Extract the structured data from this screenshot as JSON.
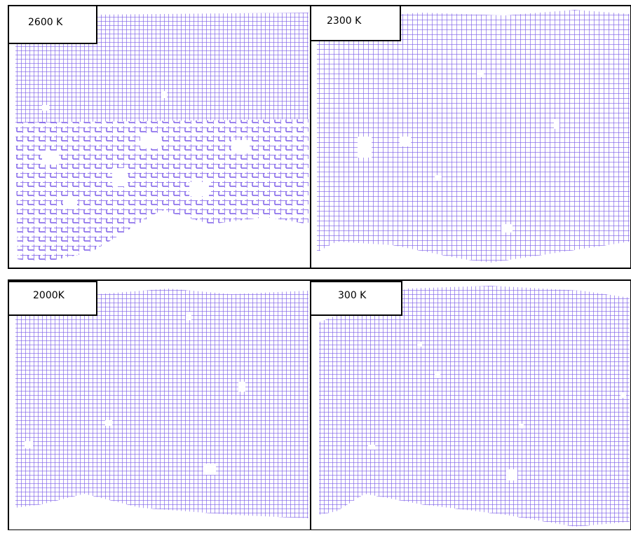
{
  "panels": [
    {
      "label": "2600 K"
    },
    {
      "label": "2300 K"
    },
    {
      "label": "2000K"
    },
    {
      "label": "300 K"
    }
  ]
}
